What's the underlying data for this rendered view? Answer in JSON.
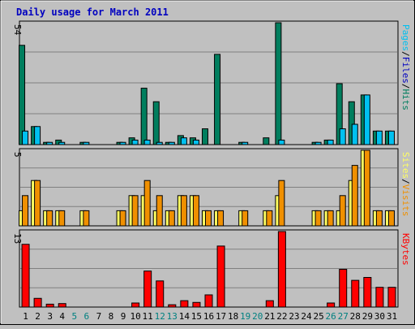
{
  "title": "Daily usage for March 2011",
  "colors": {
    "background": "#c0c0c0",
    "title": "#0000c0",
    "hits": "#007e5e",
    "files": "#0000c0",
    "pages": "#00c0f0",
    "visits": "#f09000",
    "sites": "#ffff60",
    "kbytes": "#ff0000",
    "weekend_day": "#008080",
    "weekday": "#000000"
  },
  "chart_data": [
    {
      "type": "bar",
      "panel": "hits_files_pages",
      "ymax_label": "54",
      "ylim": [
        0,
        54
      ],
      "legend": [
        "Pages",
        "/",
        "Files",
        "/",
        "Hits"
      ],
      "categories": [
        "1",
        "2",
        "3",
        "4",
        "5",
        "6",
        "7",
        "8",
        "9",
        "10",
        "11",
        "12",
        "13",
        "14",
        "15",
        "16",
        "17",
        "18",
        "19",
        "20",
        "21",
        "22",
        "23",
        "24",
        "25",
        "26",
        "27",
        "28",
        "29",
        "30",
        "31"
      ],
      "series": [
        {
          "name": "Hits",
          "values": [
            44,
            8,
            1,
            2,
            0,
            1,
            0,
            0,
            1,
            3,
            25,
            19,
            1,
            4,
            3,
            7,
            40,
            0,
            1,
            0,
            3,
            54,
            0,
            0,
            1,
            2,
            27,
            19,
            22,
            6,
            6
          ]
        },
        {
          "name": "Pages",
          "values": [
            6,
            8,
            1,
            1,
            0,
            1,
            0,
            0,
            1,
            2,
            2,
            1,
            1,
            3,
            2,
            0,
            0,
            0,
            1,
            0,
            0,
            2,
            0,
            0,
            1,
            2,
            7,
            9,
            22,
            6,
            6
          ]
        }
      ]
    },
    {
      "type": "bar",
      "panel": "visits_sites",
      "ymax_label": "5",
      "ylim": [
        0,
        5
      ],
      "legend": [
        "Sites",
        "/",
        "Visits"
      ],
      "categories": [
        "1",
        "2",
        "3",
        "4",
        "5",
        "6",
        "7",
        "8",
        "9",
        "10",
        "11",
        "12",
        "13",
        "14",
        "15",
        "16",
        "17",
        "18",
        "19",
        "20",
        "21",
        "22",
        "23",
        "24",
        "25",
        "26",
        "27",
        "28",
        "29",
        "30",
        "31"
      ],
      "series": [
        {
          "name": "Sites",
          "values": [
            1,
            3,
            1,
            1,
            0,
            1,
            0,
            0,
            1,
            2,
            2,
            1,
            1,
            2,
            2,
            1,
            1,
            0,
            1,
            0,
            1,
            2,
            0,
            0,
            1,
            1,
            1,
            3,
            5,
            1,
            1
          ]
        },
        {
          "name": "Visits",
          "values": [
            2,
            3,
            1,
            1,
            0,
            1,
            0,
            0,
            1,
            2,
            3,
            2,
            1,
            2,
            2,
            1,
            1,
            0,
            1,
            0,
            1,
            3,
            0,
            0,
            1,
            1,
            2,
            4,
            5,
            1,
            1
          ]
        }
      ]
    },
    {
      "type": "bar",
      "panel": "kbytes",
      "ymax_label": "13",
      "ylim": [
        0,
        13
      ],
      "legend": [
        "KBytes"
      ],
      "categories": [
        "1",
        "2",
        "3",
        "4",
        "5",
        "6",
        "7",
        "8",
        "9",
        "10",
        "11",
        "12",
        "13",
        "14",
        "15",
        "16",
        "17",
        "18",
        "19",
        "20",
        "21",
        "22",
        "23",
        "24",
        "25",
        "26",
        "27",
        "28",
        "29",
        "30",
        "31"
      ],
      "series": [
        {
          "name": "KBytes",
          "values": [
            10.8,
            1.5,
            0.5,
            0.6,
            0,
            0,
            0,
            0,
            0,
            0.7,
            6.2,
            4.5,
            0.4,
            1.1,
            0.8,
            2.1,
            10.5,
            0,
            0,
            0,
            1.1,
            13,
            0,
            0,
            0,
            0.7,
            6.5,
            4.6,
            5.1,
            3.4,
            3.4
          ]
        }
      ]
    }
  ],
  "weekend_days": [
    "5",
    "6",
    "12",
    "13",
    "19",
    "20",
    "26",
    "27"
  ]
}
